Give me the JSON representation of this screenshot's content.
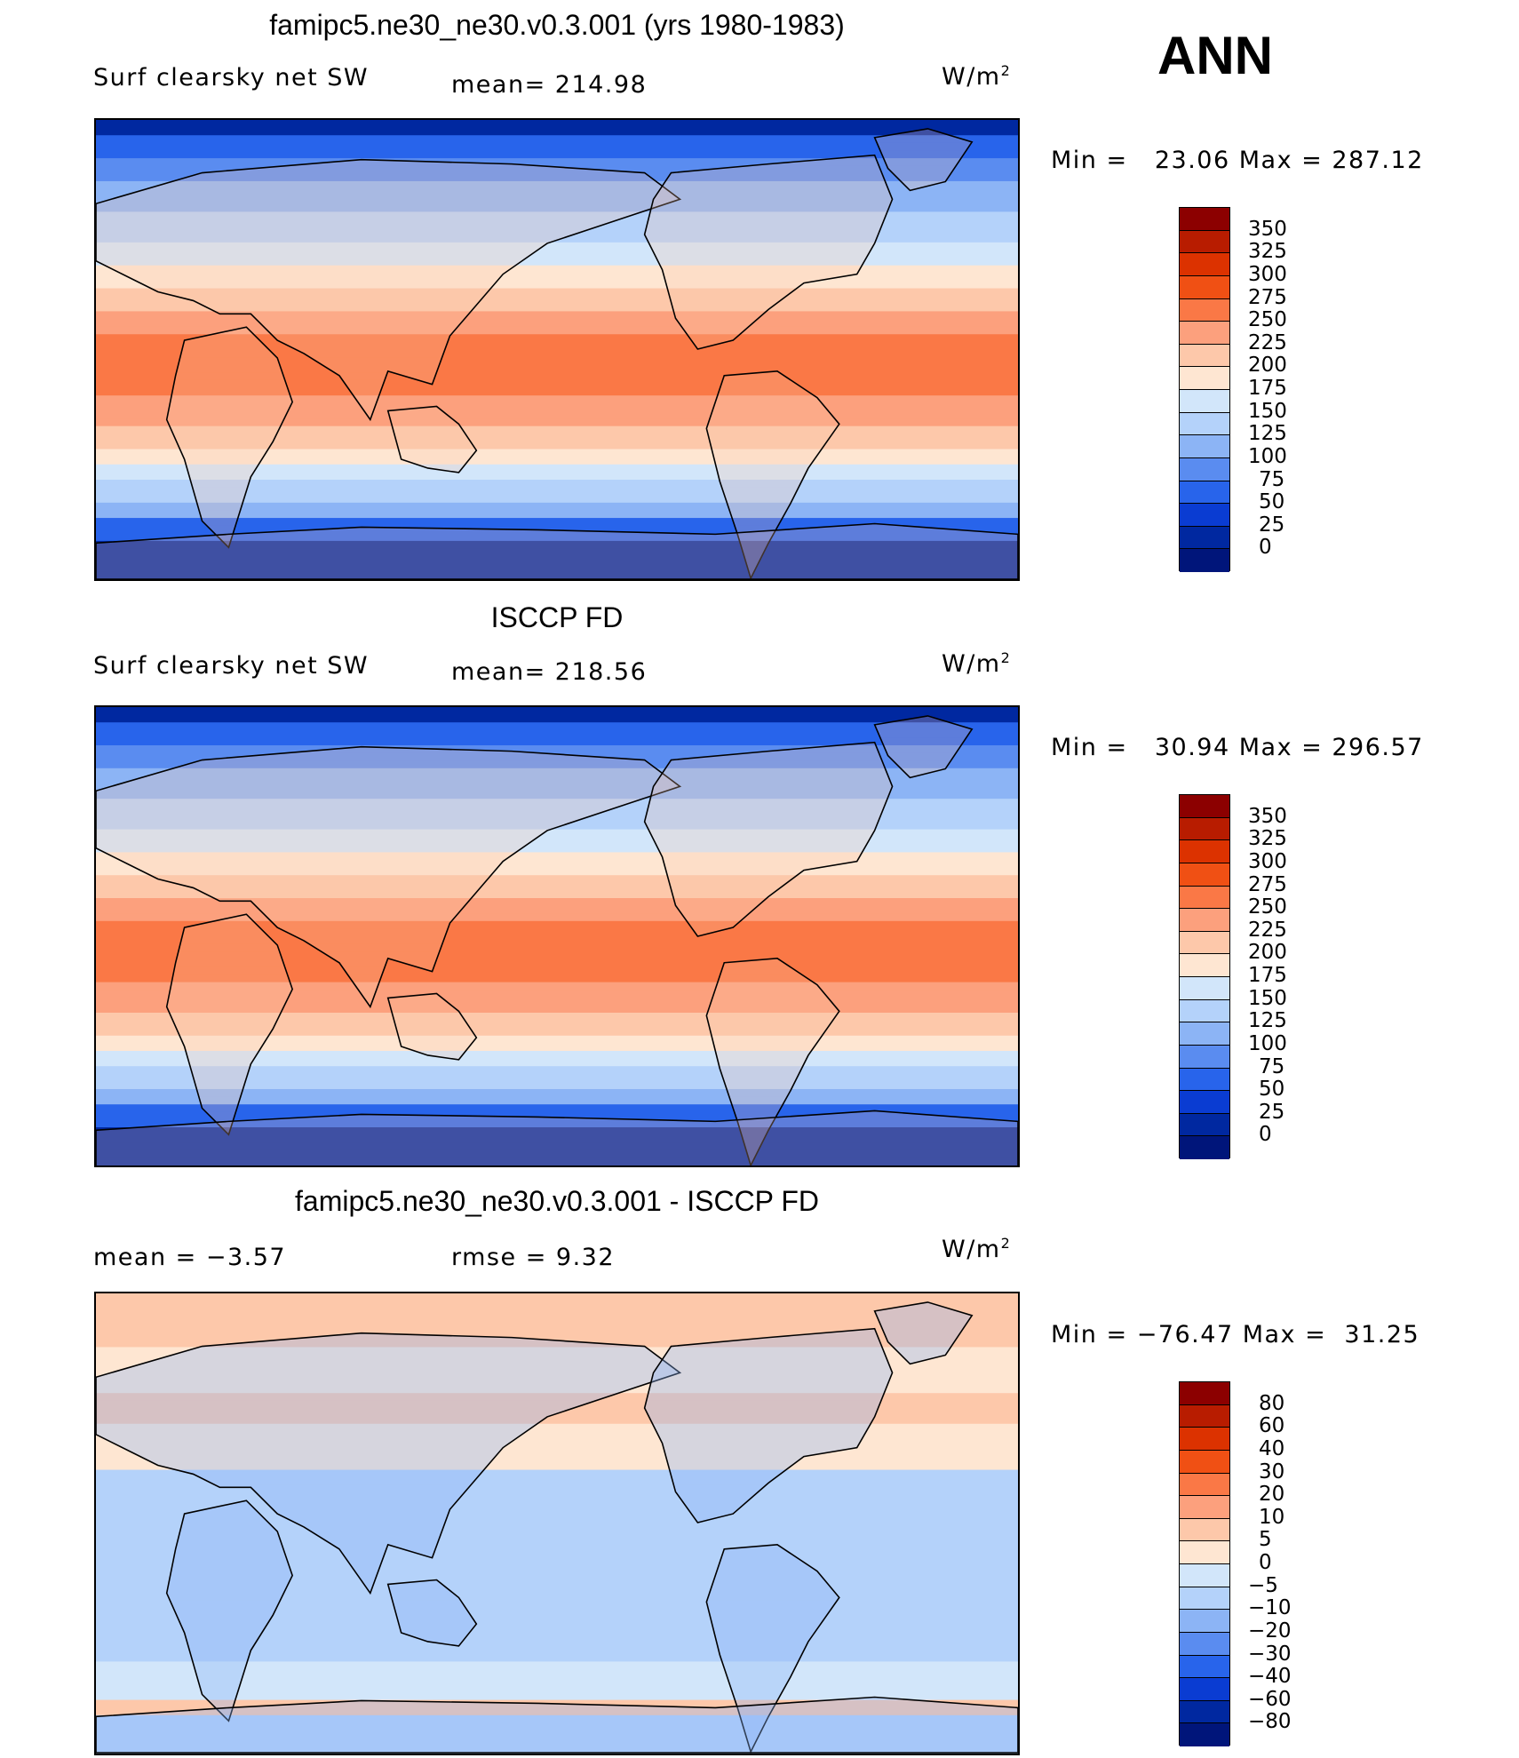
{
  "season": "ANN",
  "panels": [
    {
      "id": "model",
      "title": "famipc5.ne30_ne30.v0.3.001 (yrs 1980-1983)",
      "left_label": "Surf clearsky net SW",
      "center_label": "mean= 214.98",
      "units": "W/m",
      "units_sup": "2",
      "minmax": "Min =   23.06 Max = 287.12",
      "colorbar": {
        "levels": [
          "350",
          "325",
          "300",
          "275",
          "250",
          "225",
          "200",
          "175",
          "150",
          "125",
          "100",
          "75",
          "50",
          "25",
          "0"
        ],
        "colors": [
          "#8c0000",
          "#b81c00",
          "#dc3200",
          "#f05014",
          "#fa7846",
          "#fca07d",
          "#fdc8aa",
          "#fee6d2",
          "#d2e6fa",
          "#b4d2fa",
          "#8cb4f5",
          "#5a8cf0",
          "#2864eb",
          "#0a3cd2",
          "#0028a0",
          "#00157a"
        ]
      },
      "map_field": "sw_model"
    },
    {
      "id": "obs",
      "title": "ISCCP FD",
      "left_label": "Surf clearsky net SW",
      "center_label": "mean= 218.56",
      "units": "W/m",
      "units_sup": "2",
      "minmax": "Min =   30.94 Max = 296.57",
      "colorbar": {
        "levels": [
          "350",
          "325",
          "300",
          "275",
          "250",
          "225",
          "200",
          "175",
          "150",
          "125",
          "100",
          "75",
          "50",
          "25",
          "0"
        ],
        "colors": [
          "#8c0000",
          "#b81c00",
          "#dc3200",
          "#f05014",
          "#fa7846",
          "#fca07d",
          "#fdc8aa",
          "#fee6d2",
          "#d2e6fa",
          "#b4d2fa",
          "#8cb4f5",
          "#5a8cf0",
          "#2864eb",
          "#0a3cd2",
          "#0028a0",
          "#00157a"
        ]
      },
      "map_field": "sw_obs"
    },
    {
      "id": "diff",
      "title": "famipc5.ne30_ne30.v0.3.001 - ISCCP FD",
      "left_label": "mean =   −3.57",
      "center_label": "rmse =    9.32",
      "units": "W/m",
      "units_sup": "2",
      "minmax": "Min = −76.47 Max =  31.25",
      "colorbar": {
        "levels": [
          "80",
          "60",
          "40",
          "30",
          "20",
          "10",
          "5",
          "0",
          "−5",
          "−10",
          "−20",
          "−30",
          "−40",
          "−60",
          "−80"
        ],
        "colors": [
          "#8c0000",
          "#b81c00",
          "#dc3200",
          "#f05014",
          "#fa7846",
          "#fca07d",
          "#fdc8aa",
          "#fee6d2",
          "#d2e6fa",
          "#b4d2fa",
          "#8cb4f5",
          "#5a8cf0",
          "#2864eb",
          "#0a3cd2",
          "#0028a0",
          "#00157a"
        ]
      },
      "map_field": "difference"
    }
  ]
}
